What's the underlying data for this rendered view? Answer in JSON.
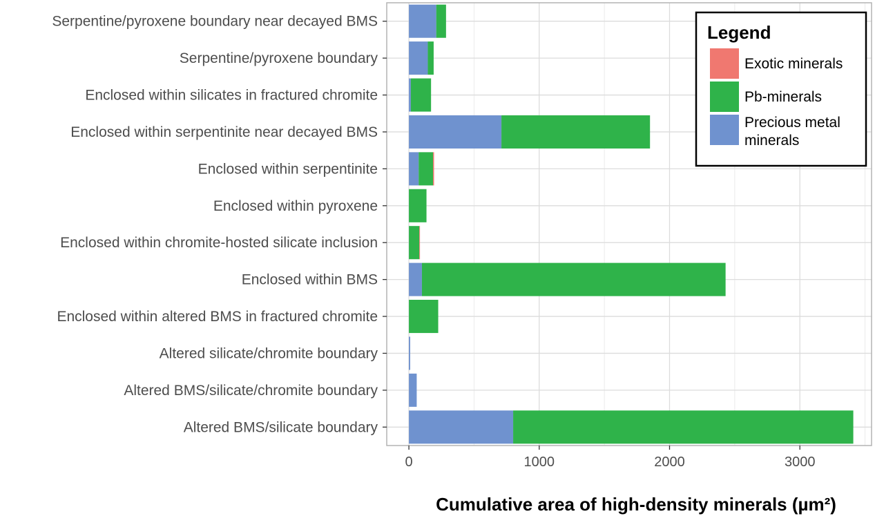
{
  "chart_data": {
    "type": "bar",
    "orientation": "horizontal",
    "stacked": true,
    "categories": [
      "Serpentine/pyroxene boundary near decayed BMS",
      "Serpentine/pyroxene  boundary",
      "Enclosed within silicates in fractured chromite",
      "Enclosed within serpentinite near decayed BMS",
      "Enclosed within serpentinite",
      "Enclosed within pyroxene",
      "Enclosed within chromite-hosted silicate inclusion",
      "Enclosed within BMS",
      "Enclosed within altered BMS in fractured chromite",
      "Altered silicate/chromite boundary",
      "Altered BMS/silicate/chromite boundary",
      "Altered BMS/silicate boundary"
    ],
    "series": [
      {
        "name": "Precious metal minerals",
        "color": "#6f92cf",
        "values": [
          210,
          145,
          15,
          710,
          75,
          0,
          0,
          100,
          0,
          10,
          60,
          800
        ]
      },
      {
        "name": "Pb-minerals",
        "color": "#2fb34a",
        "values": [
          75,
          45,
          155,
          1140,
          110,
          135,
          80,
          2330,
          225,
          0,
          0,
          2610
        ]
      },
      {
        "name": "Exotic minerals",
        "color": "#f07870",
        "values": [
          0,
          0,
          0,
          0,
          8,
          0,
          5,
          0,
          0,
          0,
          0,
          0
        ]
      }
    ],
    "x_ticks": [
      "0",
      "1000",
      "2000",
      "3000"
    ],
    "x_tick_values": [
      0,
      1000,
      2000,
      3000
    ],
    "xlim": [
      -170,
      3550
    ],
    "xlabel": "Cumulative area of high-density minerals (µm²)",
    "ylabel": "",
    "grid": true,
    "legend": {
      "title": "Legend",
      "placement": "top-right",
      "items": [
        {
          "label": "Exotic minerals",
          "color": "#f07870"
        },
        {
          "label": "Pb-minerals",
          "color": "#2fb34a"
        },
        {
          "label": "Precious metal minerals",
          "label_lines": [
            "Precious metal",
            "minerals"
          ],
          "color": "#6f92cf"
        }
      ]
    }
  }
}
